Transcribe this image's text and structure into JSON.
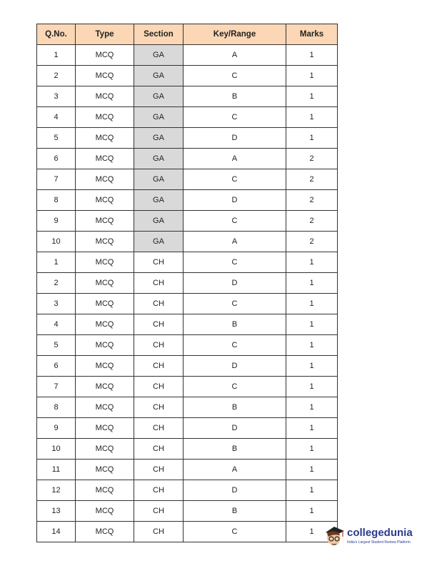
{
  "headers": [
    "Q.No.",
    "Type",
    "Section",
    "Key/Range",
    "Marks"
  ],
  "rows": [
    [
      "1",
      "MCQ",
      "GA",
      "A",
      "1"
    ],
    [
      "2",
      "MCQ",
      "GA",
      "C",
      "1"
    ],
    [
      "3",
      "MCQ",
      "GA",
      "B",
      "1"
    ],
    [
      "4",
      "MCQ",
      "GA",
      "C",
      "1"
    ],
    [
      "5",
      "MCQ",
      "GA",
      "D",
      "1"
    ],
    [
      "6",
      "MCQ",
      "GA",
      "A",
      "2"
    ],
    [
      "7",
      "MCQ",
      "GA",
      "C",
      "2"
    ],
    [
      "8",
      "MCQ",
      "GA",
      "D",
      "2"
    ],
    [
      "9",
      "MCQ",
      "GA",
      "C",
      "2"
    ],
    [
      "10",
      "MCQ",
      "GA",
      "A",
      "2"
    ],
    [
      "1",
      "MCQ",
      "CH",
      "C",
      "1"
    ],
    [
      "2",
      "MCQ",
      "CH",
      "D",
      "1"
    ],
    [
      "3",
      "MCQ",
      "CH",
      "C",
      "1"
    ],
    [
      "4",
      "MCQ",
      "CH",
      "B",
      "1"
    ],
    [
      "5",
      "MCQ",
      "CH",
      "C",
      "1"
    ],
    [
      "6",
      "MCQ",
      "CH",
      "D",
      "1"
    ],
    [
      "7",
      "MCQ",
      "CH",
      "C",
      "1"
    ],
    [
      "8",
      "MCQ",
      "CH",
      "B",
      "1"
    ],
    [
      "9",
      "MCQ",
      "CH",
      "D",
      "1"
    ],
    [
      "10",
      "MCQ",
      "CH",
      "B",
      "1"
    ],
    [
      "11",
      "MCQ",
      "CH",
      "A",
      "1"
    ],
    [
      "12",
      "MCQ",
      "CH",
      "D",
      "1"
    ],
    [
      "13",
      "MCQ",
      "CH",
      "B",
      "1"
    ],
    [
      "14",
      "MCQ",
      "CH",
      "C",
      "1"
    ]
  ],
  "highlight_color": "#d9d9d9",
  "header_color": "#fbd7b5",
  "logo": {
    "brand": "collegedunia",
    "tagline": "India's Largest Student Review Platform"
  }
}
